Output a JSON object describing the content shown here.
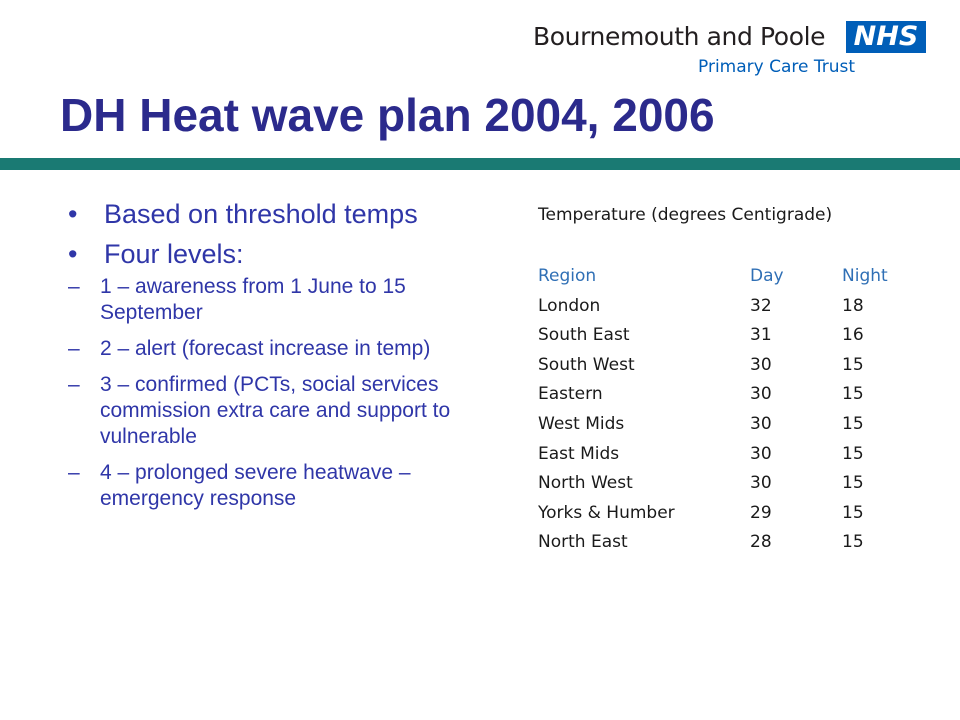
{
  "logo": {
    "org_name": "Bournemouth and Poole",
    "badge": "NHS",
    "subtitle": "Primary Care Trust"
  },
  "title": "DH Heat wave plan 2004, 2006",
  "bullets": [
    {
      "text": "Based on threshold temps",
      "subitems": []
    },
    {
      "text": "Four levels:",
      "subitems": [
        "1 – awareness from 1 June to 15 September",
        "2 – alert (forecast increase in temp)",
        "3 – confirmed (PCTs, social services commission extra care and support to vulnerable",
        "4 – prolonged severe heatwave – emergency response"
      ]
    }
  ],
  "markers": {
    "bullet": "•",
    "dash": "–"
  },
  "table": {
    "caption": "Temperature (degrees Centigrade)",
    "headers": [
      "Region",
      "Day",
      "Night"
    ],
    "rows": [
      [
        "London",
        "32",
        "18"
      ],
      [
        "South East",
        "31",
        "16"
      ],
      [
        "South West",
        "30",
        "15"
      ],
      [
        "Eastern",
        "30",
        "15"
      ],
      [
        "West Mids",
        "30",
        "15"
      ],
      [
        "East Mids",
        "30",
        "15"
      ],
      [
        "North West",
        "30",
        "15"
      ],
      [
        "Yorks & Humber",
        "29",
        "15"
      ],
      [
        "North East",
        "28",
        "15"
      ]
    ]
  },
  "colors": {
    "title": "#2b2a8c",
    "bullet_text": "#2f36a8",
    "rule": "#1a7a73",
    "nhs_blue": "#005eb8",
    "table_header": "#2f6fb5"
  }
}
